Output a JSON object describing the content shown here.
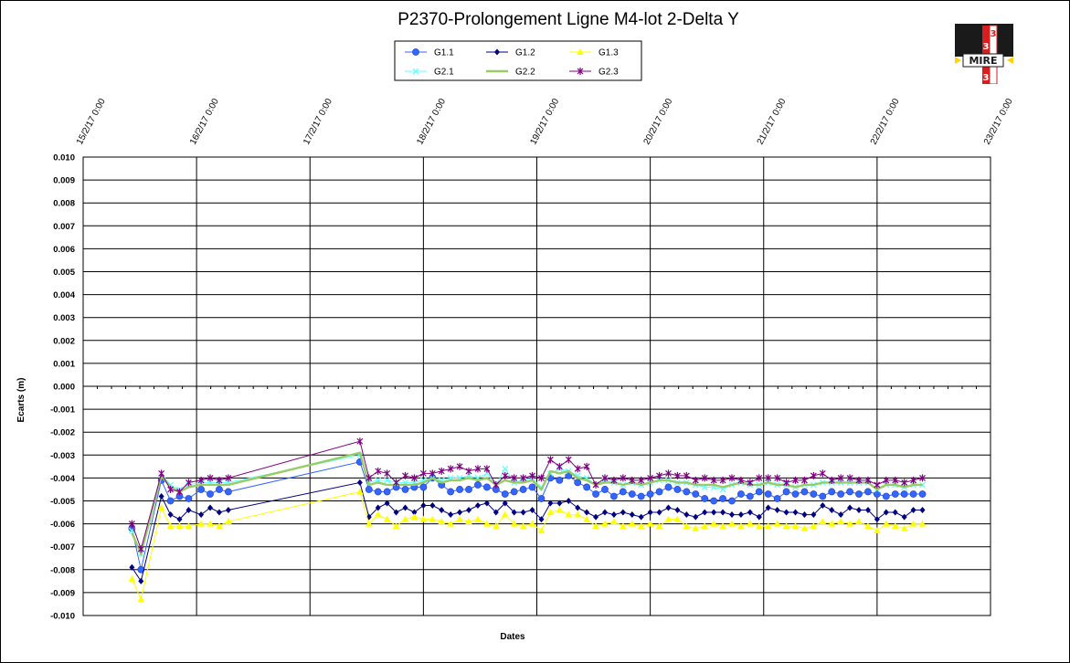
{
  "chart_data": {
    "type": "line",
    "title": "P2370-Prolongement  Ligne  M4-lot  2-Delta  Y",
    "xlabel": "Dates",
    "ylabel": "Ecarts (m)",
    "ylim": [
      -0.01,
      0.01
    ],
    "y_ticks": [
      "0.010",
      "0.009",
      "0.008",
      "0.007",
      "0.006",
      "0.005",
      "0.004",
      "0.003",
      "0.002",
      "0.001",
      "0.000",
      "-0.001",
      "-0.002",
      "-0.003",
      "-0.004",
      "-0.005",
      "-0.006",
      "-0.007",
      "-0.008",
      "-0.009",
      "-0.010"
    ],
    "x_ticks": [
      "15/2/17 0:00",
      "16/2/17 0:00",
      "17/2/17 0:00",
      "18/2/17 0:00",
      "19/2/17 0:00",
      "20/2/17 0:00",
      "21/2/17 0:00",
      "22/2/17 0:00",
      "23/2/17 0:00"
    ],
    "xlim_days": [
      15,
      23
    ],
    "grid": true,
    "legend_position": "top-center",
    "x": [
      15.43,
      15.51,
      15.69,
      15.77,
      15.85,
      15.93,
      16.04,
      16.12,
      16.2,
      16.28,
      17.44,
      17.52,
      17.6,
      17.68,
      17.76,
      17.84,
      17.92,
      18.0,
      18.08,
      18.16,
      18.24,
      18.32,
      18.4,
      18.48,
      18.56,
      18.64,
      18.72,
      18.8,
      18.88,
      18.96,
      19.04,
      19.12,
      19.2,
      19.28,
      19.36,
      19.44,
      19.52,
      19.6,
      19.68,
      19.76,
      19.84,
      19.92,
      20.0,
      20.08,
      20.16,
      20.24,
      20.32,
      20.4,
      20.48,
      20.56,
      20.64,
      20.72,
      20.8,
      20.88,
      20.96,
      21.04,
      21.12,
      21.2,
      21.28,
      21.36,
      21.44,
      21.52,
      21.6,
      21.68,
      21.76,
      21.84,
      21.92,
      22.0,
      22.08,
      22.16,
      22.24,
      22.32,
      22.4
    ],
    "series": [
      {
        "name": "G1.1",
        "color": "#3366ff",
        "marker": "circle",
        "values": [
          -0.0062,
          -0.008,
          -0.0041,
          -0.005,
          -0.0048,
          -0.0049,
          -0.0045,
          -0.0047,
          -0.0045,
          -0.0046,
          -0.0033,
          -0.0045,
          -0.0046,
          -0.0046,
          -0.0044,
          -0.0045,
          -0.0044,
          -0.0044,
          -0.004,
          -0.0043,
          -0.0046,
          -0.0045,
          -0.0045,
          -0.0043,
          -0.0044,
          -0.0045,
          -0.0047,
          -0.0046,
          -0.0045,
          -0.0044,
          -0.0049,
          -0.004,
          -0.0041,
          -0.0039,
          -0.0042,
          -0.0044,
          -0.0047,
          -0.0045,
          -0.0048,
          -0.0046,
          -0.0047,
          -0.0048,
          -0.0047,
          -0.0046,
          -0.0044,
          -0.0045,
          -0.0046,
          -0.0047,
          -0.0049,
          -0.005,
          -0.0049,
          -0.005,
          -0.0047,
          -0.0048,
          -0.0046,
          -0.0047,
          -0.0049,
          -0.0046,
          -0.0047,
          -0.0046,
          -0.0047,
          -0.0048,
          -0.0046,
          -0.0047,
          -0.0046,
          -0.0047,
          -0.0046,
          -0.0047,
          -0.0048,
          -0.0047,
          -0.0047,
          -0.0047,
          -0.0047
        ]
      },
      {
        "name": "G1.2",
        "color": "#000080",
        "marker": "diamond",
        "values": [
          -0.0079,
          -0.0085,
          -0.0048,
          -0.0056,
          -0.0058,
          -0.0054,
          -0.0056,
          -0.0053,
          -0.0055,
          -0.0054,
          -0.0042,
          -0.0057,
          -0.0053,
          -0.0051,
          -0.0055,
          -0.0053,
          -0.0055,
          -0.0052,
          -0.0052,
          -0.0054,
          -0.0056,
          -0.0055,
          -0.0054,
          -0.0052,
          -0.0051,
          -0.0055,
          -0.0051,
          -0.0055,
          -0.0055,
          -0.0054,
          -0.0058,
          -0.0051,
          -0.0051,
          -0.005,
          -0.0053,
          -0.0055,
          -0.0057,
          -0.0055,
          -0.0056,
          -0.0055,
          -0.0056,
          -0.0057,
          -0.0055,
          -0.0055,
          -0.0053,
          -0.0054,
          -0.0056,
          -0.0057,
          -0.0055,
          -0.0055,
          -0.0055,
          -0.0056,
          -0.0056,
          -0.0055,
          -0.0057,
          -0.0053,
          -0.0054,
          -0.0055,
          -0.0055,
          -0.0056,
          -0.0056,
          -0.0052,
          -0.0054,
          -0.0056,
          -0.0053,
          -0.0054,
          -0.0054,
          -0.0058,
          -0.0055,
          -0.0055,
          -0.0057,
          -0.0054,
          -0.0054
        ]
      },
      {
        "name": "G1.3",
        "color": "#ffff00",
        "marker": "triangle",
        "values": [
          -0.0084,
          -0.0093,
          -0.0053,
          -0.0061,
          -0.0061,
          -0.0061,
          -0.006,
          -0.006,
          -0.0061,
          -0.0059,
          -0.0046,
          -0.006,
          -0.0056,
          -0.0058,
          -0.0061,
          -0.0058,
          -0.0057,
          -0.0058,
          -0.0058,
          -0.0059,
          -0.006,
          -0.0058,
          -0.0059,
          -0.0058,
          -0.006,
          -0.0061,
          -0.0056,
          -0.006,
          -0.0061,
          -0.006,
          -0.0063,
          -0.0055,
          -0.0054,
          -0.0056,
          -0.0056,
          -0.0058,
          -0.0061,
          -0.006,
          -0.0059,
          -0.0061,
          -0.006,
          -0.0061,
          -0.006,
          -0.0061,
          -0.0058,
          -0.0058,
          -0.0061,
          -0.0062,
          -0.0061,
          -0.006,
          -0.0061,
          -0.006,
          -0.0061,
          -0.006,
          -0.0061,
          -0.0061,
          -0.006,
          -0.0061,
          -0.0061,
          -0.0062,
          -0.0061,
          -0.0059,
          -0.006,
          -0.0059,
          -0.006,
          -0.0059,
          -0.0061,
          -0.0063,
          -0.006,
          -0.0061,
          -0.0062,
          -0.006,
          -0.006
        ]
      },
      {
        "name": "G2.1",
        "color": "#66ffff",
        "marker": "x",
        "values": [
          -0.0063,
          -0.0073,
          -0.0038,
          -0.0043,
          -0.0045,
          -0.0043,
          -0.0042,
          -0.0042,
          -0.0042,
          -0.0042,
          -0.003,
          -0.0042,
          -0.0041,
          -0.0041,
          -0.0042,
          -0.0042,
          -0.0042,
          -0.0041,
          -0.004,
          -0.0041,
          -0.004,
          -0.004,
          -0.0039,
          -0.004,
          -0.0038,
          -0.0043,
          -0.0036,
          -0.0042,
          -0.0041,
          -0.004,
          -0.0044,
          -0.0038,
          -0.0036,
          -0.0037,
          -0.0039,
          -0.004,
          -0.0043,
          -0.0041,
          -0.0042,
          -0.0043,
          -0.0042,
          -0.0043,
          -0.0042,
          -0.0041,
          -0.0041,
          -0.0042,
          -0.0042,
          -0.0043,
          -0.0044,
          -0.0044,
          -0.0045,
          -0.0043,
          -0.0042,
          -0.0043,
          -0.0043,
          -0.0042,
          -0.0043,
          -0.0043,
          -0.0044,
          -0.0043,
          -0.0043,
          -0.0042,
          -0.0042,
          -0.0042,
          -0.0042,
          -0.0042,
          -0.0042,
          -0.0045,
          -0.0043,
          -0.0043,
          -0.0044,
          -0.0043,
          -0.0043
        ]
      },
      {
        "name": "G2.2",
        "color": "#99cc66",
        "marker": "none",
        "values": [
          -0.0064,
          -0.0073,
          -0.0039,
          -0.0044,
          -0.0046,
          -0.0044,
          -0.0043,
          -0.0043,
          -0.0043,
          -0.0043,
          -0.0029,
          -0.0043,
          -0.0042,
          -0.0043,
          -0.0043,
          -0.0043,
          -0.0043,
          -0.0042,
          -0.004,
          -0.0042,
          -0.0041,
          -0.0041,
          -0.004,
          -0.0041,
          -0.004,
          -0.0043,
          -0.0041,
          -0.0042,
          -0.0042,
          -0.0041,
          -0.0045,
          -0.0037,
          -0.0038,
          -0.0037,
          -0.004,
          -0.0041,
          -0.0043,
          -0.0042,
          -0.0042,
          -0.0043,
          -0.0042,
          -0.0043,
          -0.0042,
          -0.0041,
          -0.0041,
          -0.0042,
          -0.0042,
          -0.0043,
          -0.0043,
          -0.0043,
          -0.0044,
          -0.0043,
          -0.0042,
          -0.0043,
          -0.0043,
          -0.0042,
          -0.0043,
          -0.0043,
          -0.0044,
          -0.0043,
          -0.0043,
          -0.0042,
          -0.0042,
          -0.0042,
          -0.0042,
          -0.0042,
          -0.0042,
          -0.0045,
          -0.0043,
          -0.0043,
          -0.0044,
          -0.0043,
          -0.0043
        ]
      },
      {
        "name": "G2.3",
        "color": "#800080",
        "marker": "star",
        "values": [
          -0.006,
          -0.0071,
          -0.0038,
          -0.0045,
          -0.0046,
          -0.0042,
          -0.0041,
          -0.004,
          -0.0041,
          -0.004,
          -0.0024,
          -0.004,
          -0.0037,
          -0.0038,
          -0.0042,
          -0.0039,
          -0.004,
          -0.0038,
          -0.0038,
          -0.0037,
          -0.0036,
          -0.0035,
          -0.0037,
          -0.0036,
          -0.0036,
          -0.0043,
          -0.0039,
          -0.004,
          -0.004,
          -0.0039,
          -0.004,
          -0.0032,
          -0.0035,
          -0.0032,
          -0.0036,
          -0.0035,
          -0.0043,
          -0.004,
          -0.0041,
          -0.004,
          -0.0041,
          -0.0041,
          -0.004,
          -0.0039,
          -0.0038,
          -0.0039,
          -0.0039,
          -0.0041,
          -0.004,
          -0.0041,
          -0.0041,
          -0.004,
          -0.0041,
          -0.0042,
          -0.004,
          -0.004,
          -0.004,
          -0.0042,
          -0.0041,
          -0.0041,
          -0.0039,
          -0.0038,
          -0.0041,
          -0.004,
          -0.004,
          -0.0041,
          -0.0041,
          -0.0043,
          -0.0041,
          -0.0041,
          -0.0042,
          -0.0041,
          -0.004
        ]
      }
    ]
  },
  "logo": {
    "text": "MIRE",
    "letters": [
      "3",
      "3",
      "3"
    ]
  }
}
